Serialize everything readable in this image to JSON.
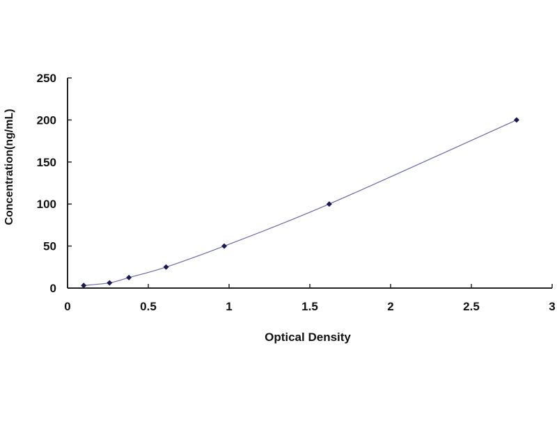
{
  "chart_data": {
    "type": "scatter",
    "title": "",
    "xlabel": "Optical Density",
    "ylabel": "Concentration(ng/mL)",
    "xlim": [
      0,
      3
    ],
    "ylim": [
      0,
      250
    ],
    "xticks": [
      "0",
      "0.5",
      "1",
      "1.5",
      "2",
      "2.5",
      "3"
    ],
    "yticks": [
      "0",
      "50",
      "100",
      "150",
      "200",
      "250"
    ],
    "grid": false,
    "legend": "none",
    "trendline": "smooth curve",
    "colors": {
      "line": "#6a6aa8",
      "marker": "#1a1a50"
    },
    "series": [
      {
        "x": [
          0.1,
          0.26,
          0.38,
          0.61,
          0.97,
          1.62,
          2.78
        ],
        "y": [
          3.12,
          6.25,
          12.5,
          25,
          50,
          100,
          200
        ]
      }
    ]
  }
}
